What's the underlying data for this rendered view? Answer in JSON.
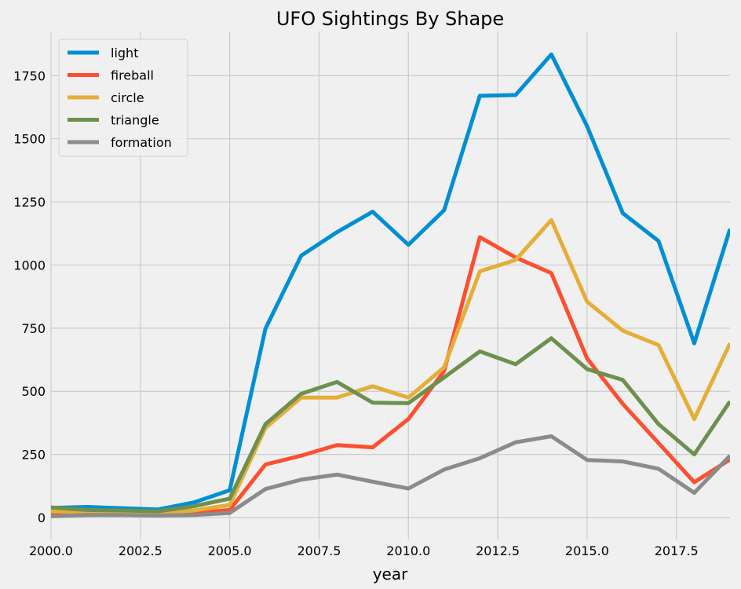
{
  "chart_data": {
    "type": "line",
    "title": "UFO Sightings By Shape",
    "xlabel": "year",
    "ylabel": "",
    "xlim": [
      2000,
      2019
    ],
    "ylim": [
      -87,
      1925
    ],
    "grid": true,
    "legend_placement": "top-left",
    "x_ticks": [
      "2000.0",
      "2002.5",
      "2005.0",
      "2007.5",
      "2010.0",
      "2012.5",
      "2015.0",
      "2017.5"
    ],
    "x_tick_values": [
      2000,
      2002.5,
      2005,
      2007.5,
      2010,
      2012.5,
      2015,
      2017.5
    ],
    "y_ticks": [
      "0",
      "250",
      "500",
      "750",
      "1000",
      "1250",
      "1500",
      "1750"
    ],
    "y_tick_values": [
      0,
      250,
      500,
      750,
      1000,
      1250,
      1500,
      1750
    ],
    "x": [
      2000,
      2001,
      2002,
      2003,
      2004,
      2005,
      2006,
      2007,
      2008,
      2009,
      2010,
      2011,
      2012,
      2013,
      2014,
      2015,
      2016,
      2017,
      2018,
      2019
    ],
    "series": [
      {
        "name": "light",
        "color": "#008fd5",
        "values": [
          38,
          42,
          37,
          32,
          60,
          108,
          748,
          1037,
          1130,
          1211,
          1080,
          1217,
          1670,
          1673,
          1834,
          1550,
          1205,
          1095,
          690,
          1143
        ]
      },
      {
        "name": "fireball",
        "color": "#fc4f30",
        "values": [
          15,
          15,
          12,
          12,
          18,
          30,
          210,
          245,
          287,
          278,
          390,
          580,
          1110,
          1030,
          968,
          630,
          450,
          295,
          140,
          230
        ]
      },
      {
        "name": "circle",
        "color": "#e5ae38",
        "values": [
          25,
          22,
          20,
          18,
          28,
          50,
          355,
          475,
          475,
          520,
          475,
          595,
          975,
          1020,
          1178,
          855,
          740,
          683,
          390,
          690
        ]
      },
      {
        "name": "triangle",
        "color": "#6d904f",
        "values": [
          40,
          30,
          28,
          25,
          45,
          75,
          370,
          490,
          537,
          455,
          453,
          555,
          658,
          607,
          710,
          588,
          545,
          370,
          250,
          460
        ]
      },
      {
        "name": "formation",
        "color": "#8b8b8b",
        "values": [
          5,
          10,
          10,
          8,
          10,
          18,
          113,
          150,
          170,
          142,
          115,
          190,
          235,
          298,
          322,
          228,
          222,
          193,
          98,
          245
        ]
      }
    ]
  }
}
